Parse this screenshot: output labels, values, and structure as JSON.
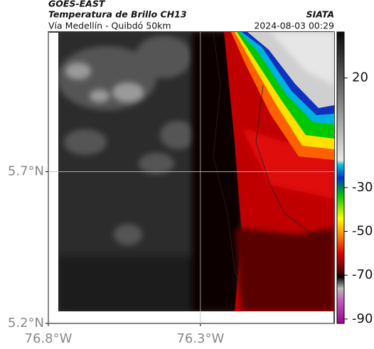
{
  "header": {
    "product": "GOES-EAST",
    "title": "Temperatura de Brillo CH13",
    "source": "SIATA",
    "subtitle": "Vía Medellín - Quibdó 50km",
    "timestamp": "2024-08-03 00:29"
  },
  "map": {
    "xlim": [
      -76.8,
      -75.86
    ],
    "ylim": [
      5.2,
      6.16
    ],
    "xticks": [
      {
        "value": -76.8,
        "label": "76.8°W"
      },
      {
        "value": -76.3,
        "label": "76.3°W"
      }
    ],
    "yticks": [
      {
        "value": 5.7,
        "label": "5.7°N"
      },
      {
        "value": 5.2,
        "label": "5.2°N"
      }
    ],
    "grid": true
  },
  "colorbar": {
    "lim": [
      -92,
      41
    ],
    "ticks": [
      20,
      -30,
      -50,
      -70,
      -90
    ]
  }
}
